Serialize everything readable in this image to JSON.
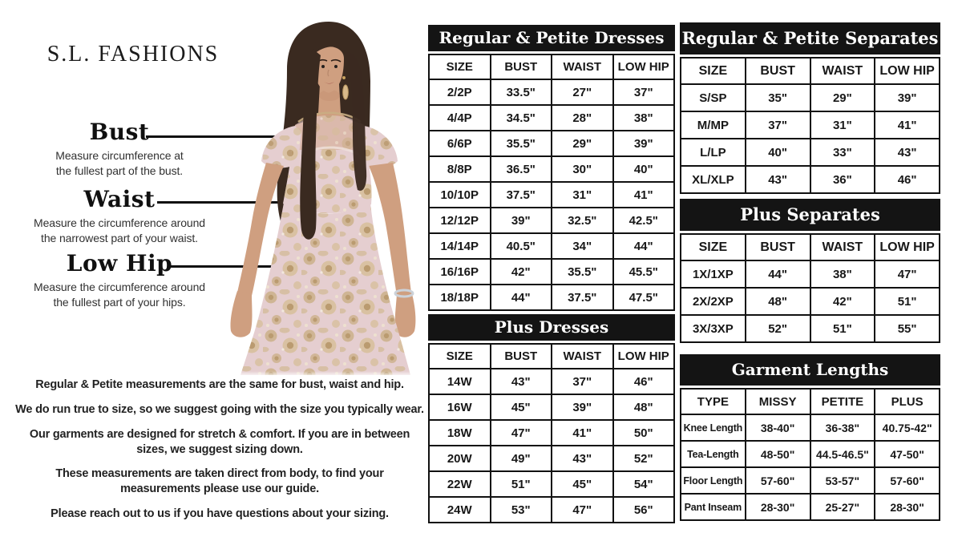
{
  "brand": {
    "name": "S.L. FASHIONS"
  },
  "colors": {
    "ink": "#141414",
    "dress-blush": "#e5ced0",
    "dress-gold": "#c9ad82",
    "skin": "#cf9f80",
    "hair": "#3a2a20"
  },
  "measurements": [
    {
      "label": "Bust",
      "description": "Measure circumference at\nthe fullest part of the bust."
    },
    {
      "label": "Waist",
      "description": "Measure the circumference around\nthe narrowest part of your waist."
    },
    {
      "label": "Low Hip",
      "description": "Measure the circumference around\nthe fullest part of your hips."
    }
  ],
  "notes": [
    "Regular & Petite measurements are the same for bust, waist and hip.",
    "We do run true to size, so we suggest going with the size you typically wear.",
    "Our garments are designed for stretch & comfort. If you are in between\nsizes, we suggest sizing down.",
    "These measurements are taken direct from body, to find your\nmeasurements please use our guide.",
    "Please reach out to us if you have questions about your sizing."
  ],
  "tables": [
    {
      "title": "Regular & Petite Dresses",
      "columns": [
        "SIZE",
        "BUST",
        "WAIST",
        "LOW HIP"
      ],
      "rows": [
        [
          "2/2P",
          "33.5\"",
          "27\"",
          "37\""
        ],
        [
          "4/4P",
          "34.5\"",
          "28\"",
          "38\""
        ],
        [
          "6/6P",
          "35.5\"",
          "29\"",
          "39\""
        ],
        [
          "8/8P",
          "36.5\"",
          "30\"",
          "40\""
        ],
        [
          "10/10P",
          "37.5\"",
          "31\"",
          "41\""
        ],
        [
          "12/12P",
          "39\"",
          "32.5\"",
          "42.5\""
        ],
        [
          "14/14P",
          "40.5\"",
          "34\"",
          "44\""
        ],
        [
          "16/16P",
          "42\"",
          "35.5\"",
          "45.5\""
        ],
        [
          "18/18P",
          "44\"",
          "37.5\"",
          "47.5\""
        ]
      ]
    },
    {
      "title": "Plus Dresses",
      "columns": [
        "SIZE",
        "BUST",
        "WAIST",
        "LOW HIP"
      ],
      "rows": [
        [
          "14W",
          "43\"",
          "37\"",
          "46\""
        ],
        [
          "16W",
          "45\"",
          "39\"",
          "48\""
        ],
        [
          "18W",
          "47\"",
          "41\"",
          "50\""
        ],
        [
          "20W",
          "49\"",
          "43\"",
          "52\""
        ],
        [
          "22W",
          "51\"",
          "45\"",
          "54\""
        ],
        [
          "24W",
          "53\"",
          "47\"",
          "56\""
        ]
      ]
    },
    {
      "title": "Regular & Petite Separates",
      "columns": [
        "SIZE",
        "BUST",
        "WAIST",
        "LOW HIP"
      ],
      "rows": [
        [
          "S/SP",
          "35\"",
          "29\"",
          "39\""
        ],
        [
          "M/MP",
          "37\"",
          "31\"",
          "41\""
        ],
        [
          "L/LP",
          "40\"",
          "33\"",
          "43\""
        ],
        [
          "XL/XLP",
          "43\"",
          "36\"",
          "46\""
        ]
      ]
    },
    {
      "title": "Plus Separates",
      "columns": [
        "SIZE",
        "BUST",
        "WAIST",
        "LOW HIP"
      ],
      "rows": [
        [
          "1X/1XP",
          "44\"",
          "38\"",
          "47\""
        ],
        [
          "2X/2XP",
          "48\"",
          "42\"",
          "51\""
        ],
        [
          "3X/3XP",
          "52\"",
          "51\"",
          "55\""
        ]
      ]
    },
    {
      "title": "Garment Lengths",
      "columns": [
        "TYPE",
        "MISSY",
        "PETITE",
        "PLUS"
      ],
      "rows": [
        [
          "Knee Length",
          "38-40\"",
          "36-38\"",
          "40.75-42\""
        ],
        [
          "Tea-Length",
          "48-50\"",
          "44.5-46.5\"",
          "47-50\""
        ],
        [
          "Floor Length",
          "57-60\"",
          "53-57\"",
          "57-60\""
        ],
        [
          "Pant Inseam",
          "28-30\"",
          "25-27\"",
          "28-30\""
        ]
      ]
    }
  ]
}
